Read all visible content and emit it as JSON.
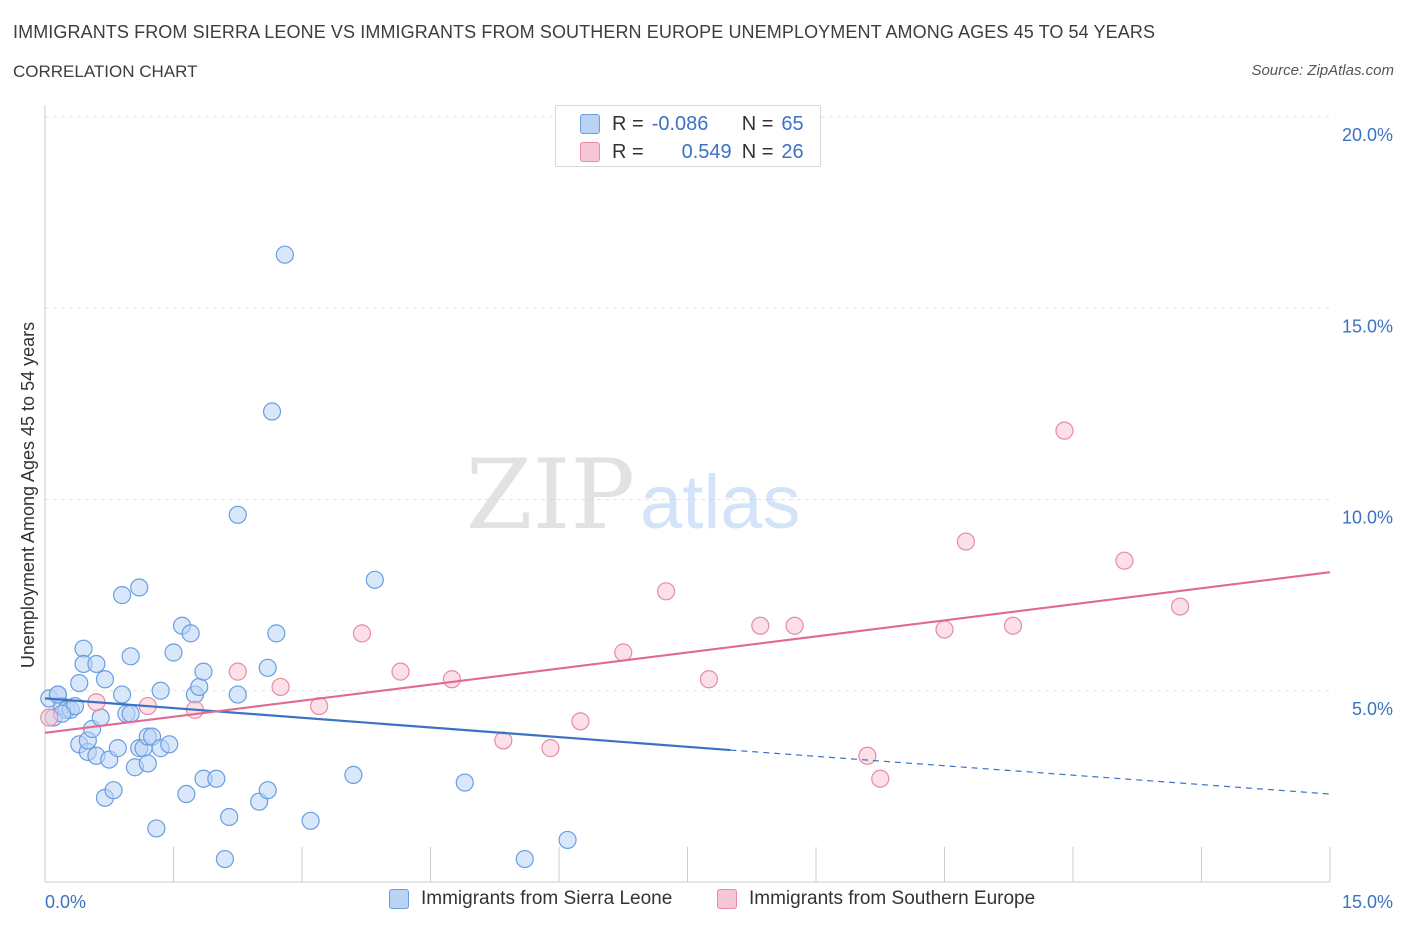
{
  "header": {
    "title": "IMMIGRANTS FROM SIERRA LEONE VS IMMIGRANTS FROM SOUTHERN EUROPE UNEMPLOYMENT AMONG AGES 45 TO 54 YEARS",
    "subtitle": "CORRELATION CHART",
    "source": "Source: ZipAtlas.com"
  },
  "stats": {
    "rows": [
      {
        "r_label": "R =",
        "r_value": "-0.086",
        "n_label": "N =",
        "n_value": "65"
      },
      {
        "r_label": "R =",
        "r_value": "0.549",
        "n_label": "N =",
        "n_value": "26"
      }
    ]
  },
  "watermark": {
    "zip": "ZIP",
    "atlas": "atlas"
  },
  "colors": {
    "blue_fill": "#b9d3f5",
    "blue_stroke": "#6a9ee0",
    "blue_line": "#3a72c4",
    "pink_fill": "#f7c6d5",
    "pink_stroke": "#e88aa8",
    "pink_line": "#e06a92",
    "axis_text": "#3a72c4",
    "grid": "#e3e3e3"
  },
  "chart_data": {
    "type": "scatter",
    "title": "IMMIGRANTS FROM SIERRA LEONE VS IMMIGRANTS FROM SOUTHERN EUROPE UNEMPLOYMENT AMONG AGES 45 TO 54 YEARS",
    "xlabel": "",
    "ylabel": "Unemployment Among Ages 45 to 54 years",
    "xlim": [
      0,
      15
    ],
    "ylim": [
      0,
      20
    ],
    "x_tick_labels": [
      "0.0%",
      "15.0%"
    ],
    "y_ticks": [
      5,
      10,
      15,
      20
    ],
    "y_tick_labels": [
      "5.0%",
      "10.0%",
      "15.0%",
      "20.0%"
    ],
    "grid": true,
    "legend_position": "bottom",
    "series": [
      {
        "name": "Immigrants from Sierra Leone",
        "color": "#6a9ee0",
        "points": [
          [
            0.05,
            4.8
          ],
          [
            0.1,
            4.3
          ],
          [
            0.15,
            4.9
          ],
          [
            0.2,
            4.6
          ],
          [
            0.25,
            4.5
          ],
          [
            0.3,
            4.5
          ],
          [
            0.35,
            4.6
          ],
          [
            0.4,
            5.2
          ],
          [
            0.4,
            3.6
          ],
          [
            0.45,
            6.1
          ],
          [
            0.45,
            5.7
          ],
          [
            0.5,
            3.4
          ],
          [
            0.5,
            3.7
          ],
          [
            0.55,
            4.0
          ],
          [
            0.6,
            3.3
          ],
          [
            0.6,
            5.7
          ],
          [
            0.65,
            4.3
          ],
          [
            0.7,
            2.2
          ],
          [
            0.7,
            5.3
          ],
          [
            0.75,
            3.2
          ],
          [
            0.8,
            2.4
          ],
          [
            0.85,
            3.5
          ],
          [
            0.9,
            4.9
          ],
          [
            0.9,
            7.5
          ],
          [
            0.95,
            4.4
          ],
          [
            1.0,
            5.9
          ],
          [
            1.0,
            4.4
          ],
          [
            1.05,
            3.0
          ],
          [
            1.1,
            3.5
          ],
          [
            1.1,
            7.7
          ],
          [
            1.15,
            3.5
          ],
          [
            1.2,
            3.1
          ],
          [
            1.2,
            3.8
          ],
          [
            1.25,
            3.8
          ],
          [
            1.3,
            1.4
          ],
          [
            1.35,
            3.5
          ],
          [
            1.35,
            5.0
          ],
          [
            1.45,
            3.6
          ],
          [
            1.5,
            6.0
          ],
          [
            1.6,
            6.7
          ],
          [
            1.65,
            2.3
          ],
          [
            1.7,
            6.5
          ],
          [
            1.75,
            4.9
          ],
          [
            1.8,
            5.1
          ],
          [
            1.85,
            5.5
          ],
          [
            1.85,
            2.7
          ],
          [
            2.0,
            2.7
          ],
          [
            2.1,
            0.6
          ],
          [
            2.15,
            1.7
          ],
          [
            2.25,
            4.9
          ],
          [
            2.25,
            9.6
          ],
          [
            2.5,
            2.1
          ],
          [
            2.6,
            5.6
          ],
          [
            2.6,
            2.4
          ],
          [
            2.65,
            12.3
          ],
          [
            2.7,
            6.5
          ],
          [
            2.8,
            16.4
          ],
          [
            3.1,
            1.6
          ],
          [
            3.6,
            2.8
          ],
          [
            3.85,
            7.9
          ],
          [
            4.9,
            2.6
          ],
          [
            5.6,
            0.6
          ],
          [
            6.1,
            1.1
          ],
          [
            0.2,
            4.4
          ],
          [
            0.15,
            4.9
          ]
        ]
      },
      {
        "name": "Immigrants from Southern Europe",
        "color": "#e88aa8",
        "points": [
          [
            0.05,
            4.3
          ],
          [
            0.6,
            4.7
          ],
          [
            1.2,
            4.6
          ],
          [
            1.75,
            4.5
          ],
          [
            2.25,
            5.5
          ],
          [
            2.75,
            5.1
          ],
          [
            3.2,
            4.6
          ],
          [
            3.7,
            6.5
          ],
          [
            4.15,
            5.5
          ],
          [
            4.75,
            5.3
          ],
          [
            5.35,
            3.7
          ],
          [
            5.9,
            3.5
          ],
          [
            6.25,
            4.2
          ],
          [
            6.75,
            6.0
          ],
          [
            7.25,
            7.6
          ],
          [
            7.75,
            5.3
          ],
          [
            8.35,
            6.7
          ],
          [
            8.75,
            6.7
          ],
          [
            9.6,
            3.3
          ],
          [
            9.75,
            2.7
          ],
          [
            10.5,
            6.6
          ],
          [
            10.75,
            8.9
          ],
          [
            11.3,
            6.7
          ],
          [
            11.9,
            11.8
          ],
          [
            12.6,
            8.4
          ],
          [
            13.25,
            7.2
          ]
        ]
      }
    ],
    "trendlines": [
      {
        "series": "Immigrants from Sierra Leone",
        "x_start": 0,
        "y_start": 4.8,
        "x_solid_end": 8.0,
        "y_solid_end": 3.45,
        "x_end": 15,
        "y_end": 2.3
      },
      {
        "series": "Immigrants from Southern Europe",
        "x_start": 0,
        "y_start": 3.9,
        "x_end": 15,
        "y_end": 8.1
      }
    ]
  },
  "legend": {
    "items": [
      {
        "label": "Immigrants from Sierra Leone"
      },
      {
        "label": "Immigrants from Southern Europe"
      }
    ]
  }
}
